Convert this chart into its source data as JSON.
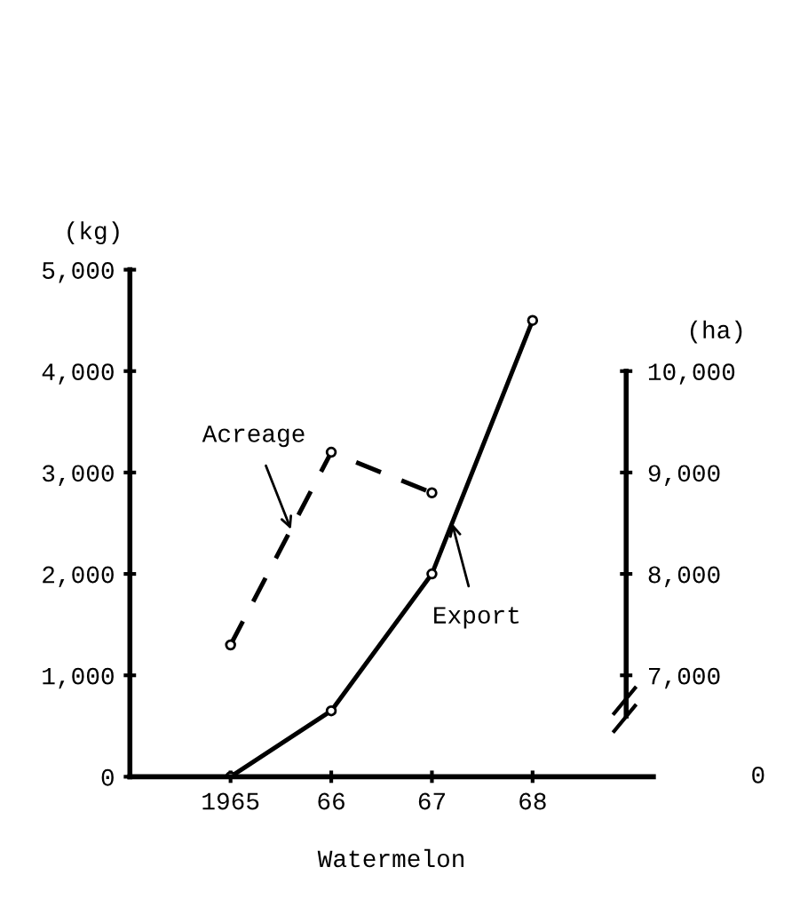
{
  "chart_data": {
    "type": "line",
    "xlabel": "Watermelon",
    "ylabel": "(kg)",
    "y2label": "(ha)",
    "x": [
      1965,
      1966,
      1967,
      1968
    ],
    "series": [
      {
        "name": "Export",
        "color": "#000000",
        "values": [
          0,
          650,
          2000,
          4500
        ],
        "line_style": "solid"
      },
      {
        "name": "Acreage",
        "color": "#000000",
        "values": [
          7300,
          9200,
          8800,
          null
        ],
        "axis": "y2",
        "line_style": "dashed"
      }
    ],
    "xlim": [
      1964,
      1969.2
    ],
    "xticks": [
      1965,
      {
        "value": 1966,
        "label": "66"
      },
      {
        "value": 1967,
        "label": "67"
      },
      {
        "value": 1968,
        "label": "68"
      }
    ],
    "ylim": [
      0,
      5000
    ],
    "yticks": [
      {
        "value": 0,
        "label": "0"
      },
      {
        "value": 1000,
        "label": "1,000"
      },
      {
        "value": 2000,
        "label": "2,000"
      },
      {
        "value": 3000,
        "label": "3,000"
      },
      {
        "value": 4000,
        "label": "4,000"
      },
      {
        "value": 5000,
        "label": "5,000"
      }
    ],
    "y2lim": [
      6000,
      11000
    ],
    "y2ticks": [
      {
        "value": 7000,
        "label": "7,000"
      },
      {
        "value": 8000,
        "label": "8,000"
      },
      {
        "value": 9000,
        "label": "9,000"
      },
      {
        "value": 10000,
        "label": "10,000"
      }
    ],
    "annotations": [
      "0"
    ],
    "marker": "circle",
    "grid": false,
    "legend": false
  }
}
